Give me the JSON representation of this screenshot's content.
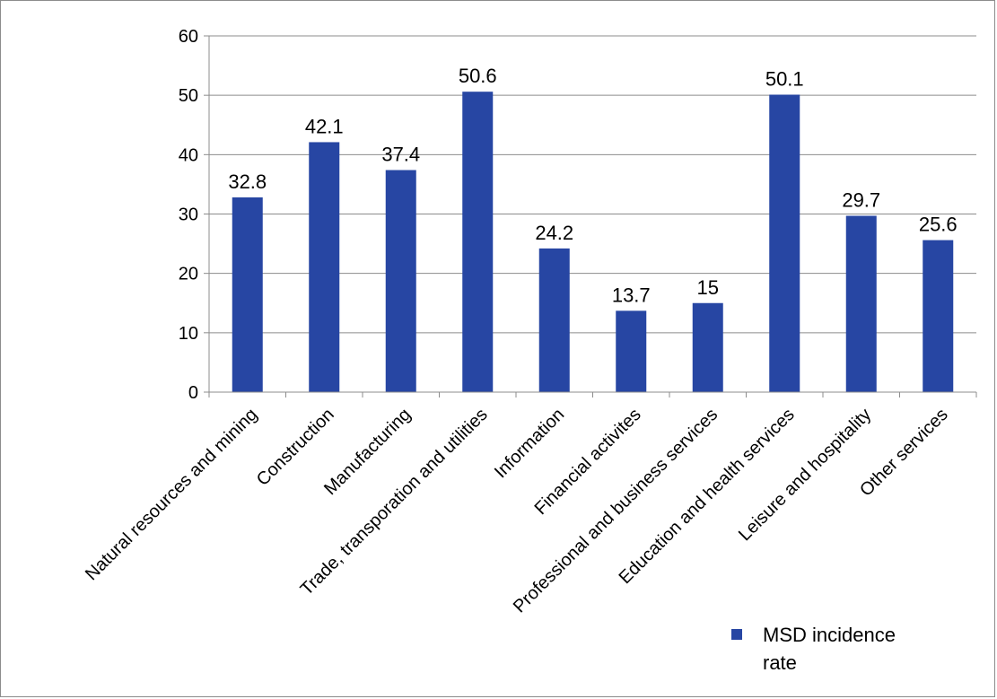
{
  "chart_data": {
    "type": "bar",
    "categories": [
      "Natural resources and mining",
      "Construction",
      "Manufacturing",
      "Trade, transporation and utilities",
      "Information",
      "Financial activites",
      "Professional and business services",
      "Education and health services",
      "Leisure and hospitality",
      "Other services"
    ],
    "series": [
      {
        "name": "MSD incidence rate",
        "values": [
          32.8,
          42.1,
          37.4,
          50.6,
          24.2,
          13.7,
          15,
          50.1,
          29.7,
          25.6
        ],
        "data_labels": [
          "32.8",
          "42.1",
          "37.4",
          "50.6",
          "24.2",
          "13.7",
          "15",
          "50.1",
          "29.7",
          "25.6"
        ]
      }
    ],
    "yticks": [
      "0",
      "10",
      "20",
      "30",
      "40",
      "50",
      "60"
    ],
    "ylim": [
      0,
      60
    ],
    "grid": "horizontal",
    "legend": {
      "position": "bottom-right",
      "lines": [
        "MSD incidence",
        "rate"
      ]
    },
    "colors": {
      "bar": "#2746A3",
      "grid": "#8c8c8c",
      "axis": "#8c8c8c"
    }
  }
}
